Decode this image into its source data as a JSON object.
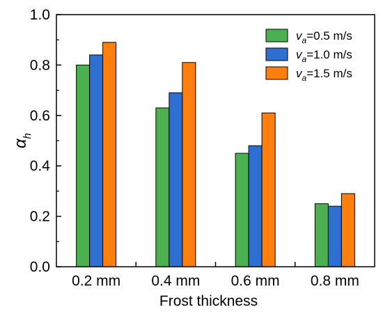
{
  "chart_data": {
    "type": "bar",
    "categories": [
      "0.2 mm",
      "0.4 mm",
      "0.6 mm",
      "0.8 mm"
    ],
    "series": [
      {
        "name": "v_a=0.5 m/s",
        "name_main": "v",
        "name_sub": "a",
        "name_rest": "=0.5 m/s",
        "color": "#4caf50",
        "values": [
          0.8,
          0.63,
          0.45,
          0.25
        ]
      },
      {
        "name": "v_a=1.0 m/s",
        "name_main": "v",
        "name_sub": "a",
        "name_rest": "=1.0 m/s",
        "color": "#2f6fcf",
        "values": [
          0.84,
          0.69,
          0.48,
          0.24
        ]
      },
      {
        "name": "v_a=1.5 m/s",
        "name_main": "v",
        "name_sub": "a",
        "name_rest": "=1.5 m/s",
        "color": "#ff7f0e",
        "values": [
          0.89,
          0.81,
          0.61,
          0.29
        ]
      }
    ],
    "xlabel": "Frost thickness",
    "ylabel_main": "α",
    "ylabel_sub": "h",
    "ylim": [
      0.0,
      1.0
    ],
    "yticks": [
      "0.0",
      "0.2",
      "0.4",
      "0.6",
      "0.8",
      "1.0"
    ],
    "grid": false,
    "legend_position": "top-right"
  }
}
